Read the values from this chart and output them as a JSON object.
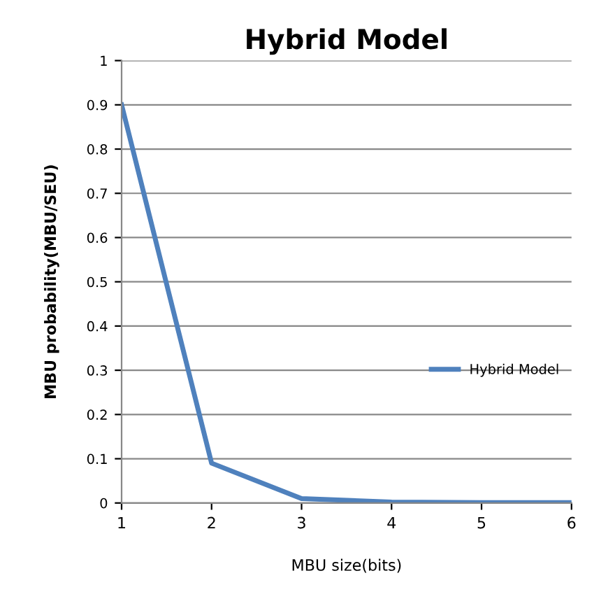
{
  "chart_data": {
    "type": "line",
    "title": "Hybrid Model",
    "xlabel": "MBU size(bits)",
    "ylabel": "MBU probability(MBU/SEU)",
    "categories": [
      "1",
      "2",
      "3",
      "4",
      "5",
      "6"
    ],
    "series": [
      {
        "name": "Hybrid Model",
        "color": "#4f81bd",
        "values": [
          0.9,
          0.09,
          0.01,
          0.002,
          0.001,
          0.001
        ]
      }
    ],
    "ylim": [
      0,
      1
    ],
    "yticks": [
      0,
      0.1,
      0.2,
      0.3,
      0.4,
      0.5,
      0.6,
      0.7,
      0.8,
      0.9,
      1
    ],
    "grid": "y",
    "legend": "right",
    "marker": "none",
    "line_style": "solid"
  }
}
